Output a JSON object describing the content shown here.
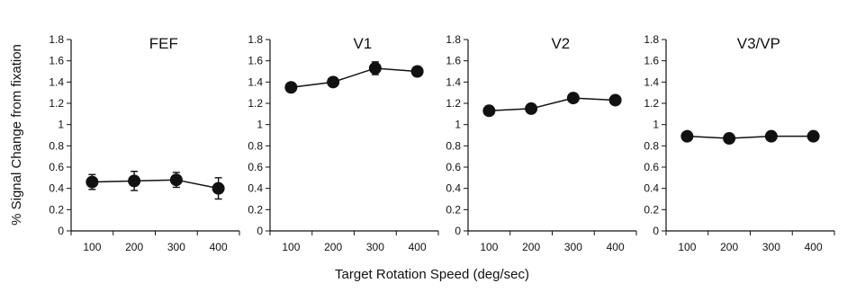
{
  "chart_data": {
    "type": "line",
    "ylabel": "% Signal Change from fixation",
    "xlabel": "Target Rotation Speed (deg/sec)",
    "ylim": [
      0,
      1.8
    ],
    "y_ticks": [
      "0",
      "0.2",
      "0.4",
      "0.6",
      "0.8",
      "1",
      "1.2",
      "1.4",
      "1.6",
      "1.8"
    ],
    "x": [
      100,
      200,
      300,
      400
    ],
    "x_ticks": [
      "100",
      "200",
      "300",
      "400"
    ],
    "grid": false,
    "marker_color": "#111111",
    "panels": [
      {
        "title": "FEF",
        "values": [
          0.46,
          0.47,
          0.48,
          0.4
        ],
        "errors": [
          0.07,
          0.09,
          0.07,
          0.1
        ]
      },
      {
        "title": "V1",
        "values": [
          1.35,
          1.4,
          1.53,
          1.5
        ],
        "errors": [
          0.03,
          0.04,
          0.06,
          0.03
        ]
      },
      {
        "title": "V2",
        "values": [
          1.13,
          1.15,
          1.25,
          1.23
        ],
        "errors": [
          0.04,
          0.03,
          0.03,
          0.02
        ]
      },
      {
        "title": "V3/VP",
        "values": [
          0.89,
          0.87,
          0.89,
          0.89
        ],
        "errors": [
          0.02,
          0.02,
          0.02,
          0.02
        ]
      }
    ]
  }
}
